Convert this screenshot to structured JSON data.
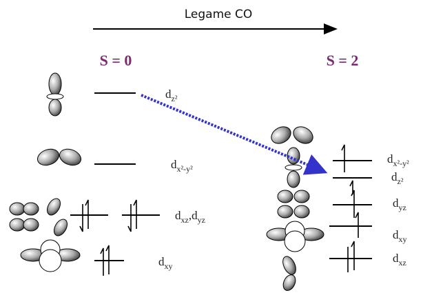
{
  "header": {
    "title": "Legame CO"
  },
  "states": [
    {
      "label": "S = 0"
    },
    {
      "label": "S = 2"
    }
  ],
  "levels": {
    "left": [
      {
        "label": [
          "d",
          "z²"
        ]
      },
      {
        "label": [
          "d",
          "x²-y²"
        ]
      },
      {
        "label": [
          "d",
          "xz",
          ",d",
          "yz"
        ]
      },
      {
        "label": [
          "d",
          "xy"
        ]
      }
    ],
    "right": [
      {
        "label": [
          "d",
          "x²-y²"
        ]
      },
      {
        "label": [
          "d",
          "z²"
        ]
      },
      {
        "label": [
          "d",
          "yz"
        ]
      },
      {
        "label": [
          "d",
          "xy"
        ]
      },
      {
        "label": [
          "d",
          "xz"
        ]
      }
    ]
  }
}
